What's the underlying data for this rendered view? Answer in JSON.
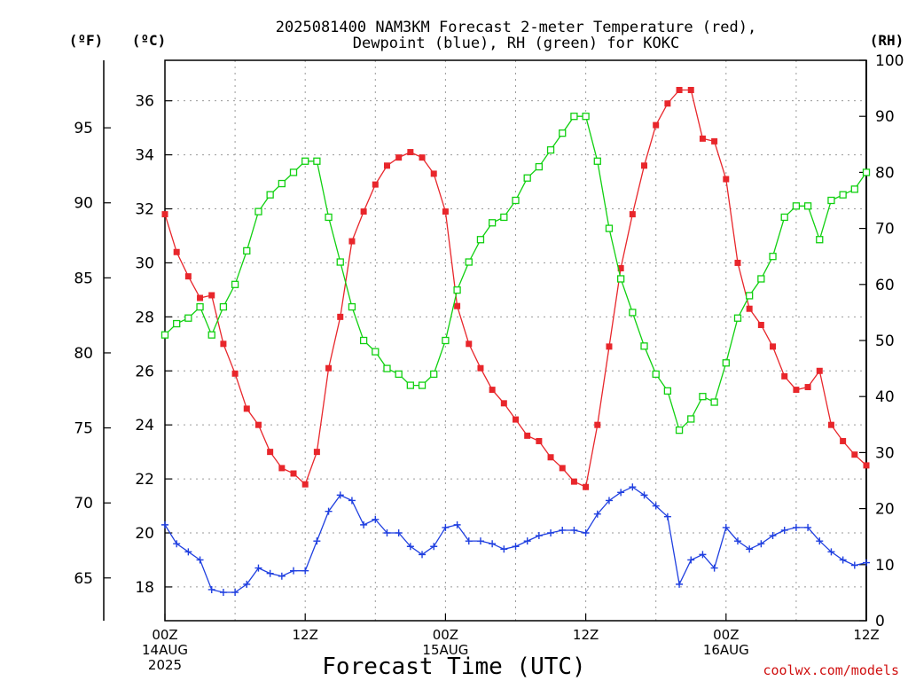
{
  "chart_data": {
    "type": "line",
    "title": "2025081400 NAM3KM Forecast 2-meter Temperature (red),\nDewpoint (blue), RH (green) for KOKC",
    "xlabel": "Forecast Time (UTC)",
    "credit": "coolwx.com/models",
    "left_outer_unit": "(ºF)",
    "left_inner_unit": "(ºC)",
    "right_unit": "(RH)",
    "x_ticks": [
      {
        "hour": 0,
        "lines": [
          "00Z",
          "14AUG",
          "2025"
        ]
      },
      {
        "hour": 12,
        "lines": [
          "12Z"
        ]
      },
      {
        "hour": 24,
        "lines": [
          "00Z",
          "15AUG"
        ]
      },
      {
        "hour": 36,
        "lines": [
          "12Z"
        ]
      },
      {
        "hour": 48,
        "lines": [
          "00Z",
          "16AUG"
        ]
      },
      {
        "hour": 60,
        "lines": [
          "12Z"
        ]
      }
    ],
    "xlim": [
      0,
      60
    ],
    "celsius_ticks": [
      18,
      20,
      22,
      24,
      26,
      28,
      30,
      32,
      34,
      36
    ],
    "celsius_range": [
      16.75,
      37.5
    ],
    "fahrenheit_ticks": [
      65,
      70,
      75,
      80,
      85,
      90,
      95
    ],
    "rh_ticks": [
      0,
      10,
      20,
      30,
      40,
      50,
      60,
      70,
      80,
      90,
      100
    ],
    "rh_range": [
      0,
      100
    ],
    "grid": true,
    "series": [
      {
        "name": "Temperature",
        "color": "#e8262b",
        "marker": "filled-square",
        "axis": "celsius",
        "x": [
          0,
          1,
          2,
          3,
          4,
          5,
          6,
          7,
          8,
          9,
          10,
          11,
          12,
          13,
          14,
          15,
          16,
          17,
          18,
          19,
          20,
          21,
          22,
          23,
          24,
          25,
          26,
          27,
          28,
          29,
          30,
          31,
          32,
          33,
          34,
          35,
          36,
          37,
          38,
          39,
          40,
          41,
          42,
          43,
          44,
          45,
          46,
          47,
          48,
          49,
          50,
          51,
          52,
          53,
          54,
          55,
          56,
          57,
          58,
          59,
          60
        ],
        "values": [
          31.8,
          30.4,
          29.5,
          28.7,
          28.8,
          27.0,
          25.9,
          24.6,
          24.0,
          23.0,
          22.4,
          22.2,
          21.8,
          23.0,
          26.1,
          28.0,
          30.8,
          31.9,
          32.9,
          33.6,
          33.9,
          34.1,
          33.9,
          33.3,
          31.9,
          28.4,
          27.0,
          26.1,
          25.3,
          24.8,
          24.2,
          23.6,
          23.4,
          22.8,
          22.4,
          21.9,
          21.7,
          24.0,
          26.9,
          29.8,
          31.8,
          33.6,
          35.1,
          35.9,
          36.4,
          36.4,
          34.6,
          34.5,
          33.1,
          30.0,
          28.3,
          27.7,
          26.9,
          25.8,
          25.3,
          25.4,
          26.0,
          24.0,
          23.4,
          22.9,
          22.5
        ]
      },
      {
        "name": "Dewpoint",
        "color": "#1f3fe0",
        "marker": "plus",
        "axis": "celsius",
        "x": [
          0,
          1,
          2,
          3,
          4,
          5,
          6,
          7,
          8,
          9,
          10,
          11,
          12,
          13,
          14,
          15,
          16,
          17,
          18,
          19,
          20,
          21,
          22,
          23,
          24,
          25,
          26,
          27,
          28,
          29,
          30,
          31,
          32,
          33,
          34,
          35,
          36,
          37,
          38,
          39,
          40,
          41,
          42,
          43,
          44,
          45,
          46,
          47,
          48,
          49,
          50,
          51,
          52,
          53,
          54,
          55,
          56,
          57,
          58,
          59,
          60
        ],
        "values": [
          20.3,
          19.6,
          19.3,
          19.0,
          17.9,
          17.8,
          17.8,
          18.1,
          18.7,
          18.5,
          18.4,
          18.6,
          18.6,
          19.7,
          20.8,
          21.4,
          21.2,
          20.3,
          20.5,
          20.0,
          20.0,
          19.5,
          19.2,
          19.5,
          20.2,
          20.3,
          19.7,
          19.7,
          19.6,
          19.4,
          19.5,
          19.7,
          19.9,
          20.0,
          20.1,
          20.1,
          20.0,
          20.7,
          21.2,
          21.5,
          21.7,
          21.4,
          21.0,
          20.6,
          18.1,
          19.0,
          19.2,
          18.7,
          20.2,
          19.7,
          19.4,
          19.6,
          19.9,
          20.1,
          20.2,
          20.2,
          19.7,
          19.3,
          19.0,
          18.8,
          18.9
        ]
      },
      {
        "name": "RH",
        "color": "#10d010",
        "marker": "open-square",
        "axis": "rh",
        "x": [
          0,
          1,
          2,
          3,
          4,
          5,
          6,
          7,
          8,
          9,
          10,
          11,
          12,
          13,
          14,
          15,
          16,
          17,
          18,
          19,
          20,
          21,
          22,
          23,
          24,
          25,
          26,
          27,
          28,
          29,
          30,
          31,
          32,
          33,
          34,
          35,
          36,
          37,
          38,
          39,
          40,
          41,
          42,
          43,
          44,
          45,
          46,
          47,
          48,
          49,
          50,
          51,
          52,
          53,
          54,
          55,
          56,
          57,
          58,
          59,
          60
        ],
        "values": [
          51,
          53,
          54,
          56,
          51,
          56,
          60,
          66,
          73,
          76,
          78,
          80,
          82,
          82,
          72,
          64,
          56,
          50,
          48,
          45,
          44,
          42,
          42,
          44,
          50,
          59,
          64,
          68,
          71,
          72,
          75,
          79,
          81,
          84,
          87,
          90,
          90,
          82,
          70,
          61,
          55,
          49,
          44,
          41,
          34,
          36,
          40,
          39,
          46,
          54,
          58,
          61,
          65,
          72,
          74,
          74,
          68,
          75,
          76,
          77,
          80
        ]
      }
    ]
  }
}
